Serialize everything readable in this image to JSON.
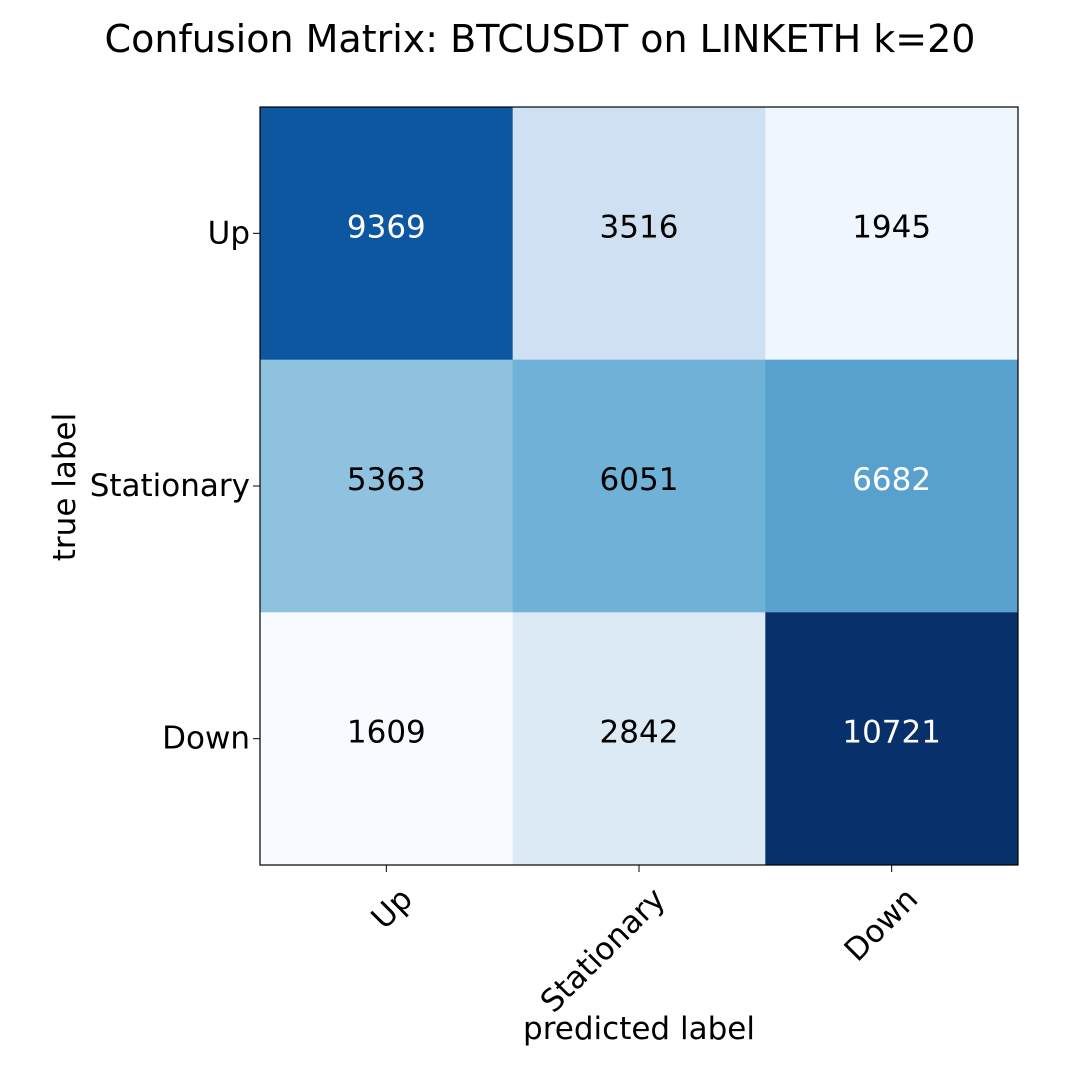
{
  "chart_data": {
    "type": "heatmap",
    "title": "Confusion Matrix: BTCUSDT on LINKETH k=20",
    "xlabel": "predicted label",
    "ylabel": "true label",
    "x_categories": [
      "Up",
      "Stationary",
      "Down"
    ],
    "y_categories": [
      "Up",
      "Stationary",
      "Down"
    ],
    "values": [
      [
        9369,
        3516,
        1945
      ],
      [
        5363,
        6051,
        6682
      ],
      [
        1609,
        2842,
        10721
      ]
    ],
    "colormap": "Blues",
    "color_range": [
      1609,
      10721
    ],
    "grid": false,
    "legend": "none"
  },
  "colors": {
    "text_dark": "#000000",
    "text_light": "#ffffff",
    "frame": "#000000",
    "cmap_stops": [
      "#f7fbff",
      "#deebf7",
      "#c6dbef",
      "#9ecae1",
      "#6baed6",
      "#4292c6",
      "#2171b5",
      "#08519c",
      "#08306b"
    ]
  }
}
